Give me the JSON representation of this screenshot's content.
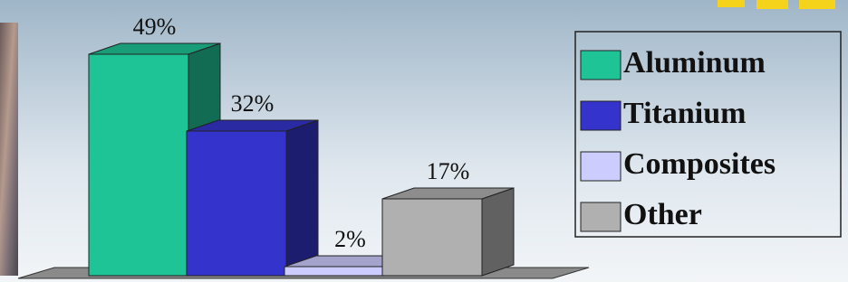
{
  "chart_data": {
    "type": "bar3d",
    "categories": [
      null
    ],
    "series": [
      {
        "name": "Aluminum",
        "color": "#1fc496",
        "values": [
          49
        ],
        "value_labels": [
          "49%"
        ]
      },
      {
        "name": "Titanium",
        "color": "#3434cc",
        "values": [
          32
        ],
        "value_labels": [
          "32%"
        ]
      },
      {
        "name": "Composites",
        "color": "#ccccff",
        "values": [
          2
        ],
        "value_labels": [
          "2%"
        ]
      },
      {
        "name": "Other",
        "color": "#b0b0b0",
        "values": [
          17
        ],
        "value_labels": [
          "17%"
        ]
      }
    ],
    "legend": "right"
  }
}
